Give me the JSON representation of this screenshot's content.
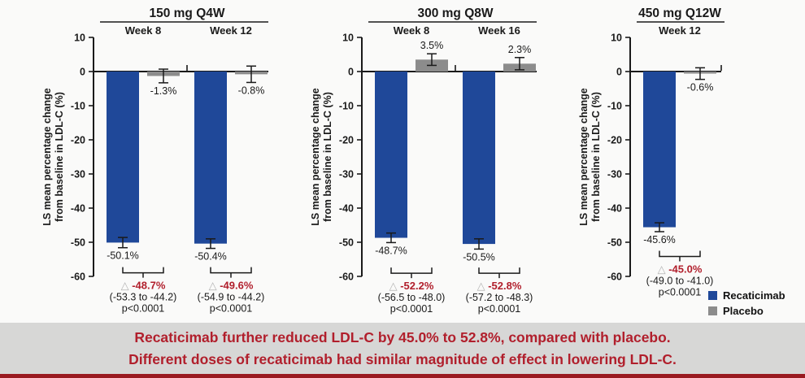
{
  "colors": {
    "recaticimab": "#1F4899",
    "placebo": "#8C8C8C",
    "axis": "#1A1A1A",
    "diff_text": "#B11F2C",
    "triangle": "#B5B5B5",
    "banner_bg": "#D7D7D6",
    "banner_text": "#B11F2C",
    "footer_strip": "#9A1A20"
  },
  "diff_prefix": "△",
  "legend": {
    "position": "bottom-right",
    "items": [
      {
        "label": "Recaticimab",
        "color_key": "recaticimab"
      },
      {
        "label": "Placebo",
        "color_key": "placebo"
      }
    ]
  },
  "banner": {
    "line1": "Recaticimab further reduced LDL-C by 45.0% to 52.8%, compared with placebo.",
    "line2": "Different doses of recaticimab had similar magnitude of effect in lowering LDL-C."
  },
  "chart_data": [
    {
      "type": "bar",
      "title": "150 mg Q4W",
      "ylabel_line1": "LS mean percentage change",
      "ylabel_line2": "from baseline in LDL-C (%)",
      "ylim": [
        -60,
        10
      ],
      "yticks": [
        10,
        0,
        -10,
        -20,
        -30,
        -40,
        -50,
        -60
      ],
      "grid": false,
      "series_names": [
        "Recaticimab",
        "Placebo"
      ],
      "groups": [
        {
          "label": "Week 8",
          "recaticimab": {
            "value": -50.1,
            "err": 1.5,
            "label": "-50.1%"
          },
          "placebo": {
            "value": -1.3,
            "err": 2.0,
            "label": "-1.3%"
          },
          "diff": {
            "delta": "-48.7%",
            "ci": "(-53.3 to -44.2)",
            "p": "p<0.0001"
          }
        },
        {
          "label": "Week 12",
          "recaticimab": {
            "value": -50.4,
            "err": 1.4,
            "label": "-50.4%"
          },
          "placebo": {
            "value": -0.8,
            "err": 2.4,
            "label": "-0.8%"
          },
          "diff": {
            "delta": "-49.6%",
            "ci": "(-54.9 to -44.2)",
            "p": "p<0.0001"
          }
        }
      ]
    },
    {
      "type": "bar",
      "title": "300 mg Q8W",
      "ylabel_line1": "LS mean percentage change",
      "ylabel_line2": "from baseline in LDL-C (%)",
      "ylim": [
        -60,
        10
      ],
      "yticks": [
        10,
        0,
        -10,
        -20,
        -30,
        -40,
        -50,
        -60
      ],
      "grid": false,
      "series_names": [
        "Recaticimab",
        "Placebo"
      ],
      "groups": [
        {
          "label": "Week 8",
          "recaticimab": {
            "value": -48.7,
            "err": 1.4,
            "label": "-48.7%"
          },
          "placebo": {
            "value": 3.5,
            "err": 1.7,
            "label": "3.5%"
          },
          "diff": {
            "delta": "-52.2%",
            "ci": "(-56.5 to -48.0)",
            "p": "p<0.0001"
          }
        },
        {
          "label": "Week 16",
          "recaticimab": {
            "value": -50.5,
            "err": 1.5,
            "label": "-50.5%"
          },
          "placebo": {
            "value": 2.3,
            "err": 1.8,
            "label": "2.3%"
          },
          "diff": {
            "delta": "-52.8%",
            "ci": "(-57.2 to -48.3)",
            "p": "p<0.0001"
          }
        }
      ]
    },
    {
      "type": "bar",
      "title": "450 mg Q12W",
      "ylabel_line1": "LS mean percentage change",
      "ylabel_line2": "from baseline in LDL-C (%)",
      "ylim": [
        -60,
        10
      ],
      "yticks": [
        10,
        0,
        -10,
        -20,
        -30,
        -40,
        -50,
        -60
      ],
      "grid": false,
      "series_names": [
        "Recaticimab",
        "Placebo"
      ],
      "groups": [
        {
          "label": "Week 12",
          "recaticimab": {
            "value": -45.6,
            "err": 1.3,
            "label": "-45.6%"
          },
          "placebo": {
            "value": -0.6,
            "err": 1.7,
            "label": "-0.6%"
          },
          "diff": {
            "delta": "-45.0%",
            "ci": "(-49.0 to -41.0)",
            "p": "p<0.0001"
          }
        }
      ]
    }
  ]
}
